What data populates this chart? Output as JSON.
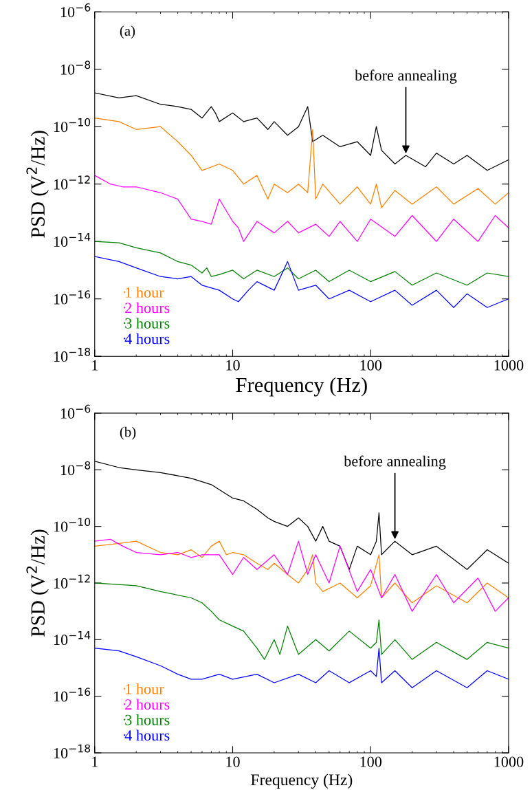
{
  "chart_data": [
    {
      "type": "line",
      "xlabel": "Frequency (Hz)",
      "ylabel": "PSD (V$^{2}$/Hz)",
      "log": "xy",
      "legend": "bottom left",
      "grid": false,
      "xlim": [
        1,
        1000
      ],
      "xticks": [
        1,
        10,
        100,
        1000
      ],
      "ylim": [
        1e-18,
        1e-06
      ],
      "yticks": [
        {
          "value": 1e-18,
          "label": "10$^{−18}$"
        },
        {
          "value": 1e-16,
          "label": "10$^{−16}$"
        },
        {
          "value": 1e-14,
          "label": "10$^{−14}$"
        },
        {
          "value": 1e-12,
          "label": "10$^{−12}$"
        },
        {
          "value": 1e-10,
          "label": "10$^{−10}$"
        },
        {
          "value": 1e-08,
          "label": "10$^{−8}$"
        },
        {
          "value": 1e-06,
          "label": "10$^{−6}$"
        }
      ],
      "annotations": [
        "(a)",
        {
          "text": "before annealing",
          "x": 180,
          "y": 1e-11
        }
      ],
      "series": [
        {
          "color": "#000000",
          "x": [
            1,
            1.5,
            2,
            3,
            4,
            5,
            6,
            7,
            7.5,
            8,
            10,
            12,
            15,
            18,
            20,
            25,
            30,
            35,
            38,
            45,
            60,
            80,
            100,
            110,
            120,
            150,
            180,
            250,
            300,
            400,
            500,
            700,
            1000
          ],
          "values": [
            1.5e-09,
            1e-09,
            1.2e-09,
            6e-10,
            5e-10,
            4e-10,
            2e-10,
            5e-10,
            3e-10,
            1.5e-10,
            3e-10,
            1.5e-10,
            2e-10,
            8e-11,
            1.5e-10,
            5e-11,
            1e-10,
            5e-10,
            3e-11,
            5e-11,
            2e-11,
            3e-11,
            1e-11,
            1e-10,
            1.5e-11,
            5e-12,
            1e-11,
            4e-12,
            1.2e-11,
            5e-12,
            1e-11,
            3e-12,
            7e-12
          ]
        },
        {
          "name": "1 hour",
          "color": "#ff8000",
          "x": [
            1,
            1.5,
            2,
            3,
            4,
            5,
            6,
            8,
            10,
            12,
            15,
            18,
            20,
            25,
            30,
            35,
            38,
            40,
            45,
            60,
            80,
            100,
            110,
            120,
            150,
            200,
            300,
            400,
            600,
            800,
            1000
          ],
          "values": [
            2e-10,
            1.5e-10,
            8e-11,
            1e-10,
            3e-11,
            1e-11,
            3e-12,
            5e-12,
            3e-12,
            1e-12,
            2e-12,
            3e-13,
            1e-12,
            5e-13,
            1e-12,
            5e-13,
            8e-11,
            3e-13,
            1e-12,
            2e-13,
            8e-13,
            2e-13,
            1e-12,
            1.5e-13,
            6e-13,
            2e-13,
            8e-13,
            2e-13,
            7e-13,
            2e-13,
            5e-13
          ]
        },
        {
          "name": "2 hours",
          "color": "#ff00ff",
          "x": [
            1,
            1.3,
            1.6,
            2,
            3,
            4,
            5,
            6,
            7,
            8,
            10,
            11,
            12,
            15,
            20,
            25,
            30,
            40,
            50,
            60,
            80,
            100,
            150,
            200,
            300,
            400,
            600,
            800,
            1000
          ],
          "values": [
            2e-12,
            1e-12,
            8e-13,
            8e-13,
            5e-13,
            3e-13,
            6e-14,
            5e-14,
            4e-14,
            3e-13,
            5e-14,
            3e-14,
            1e-14,
            5e-14,
            2e-14,
            5e-14,
            2e-14,
            4e-14,
            1.5e-14,
            5e-14,
            1e-14,
            6e-14,
            1.5e-14,
            8e-14,
            1e-14,
            6e-14,
            1e-14,
            8e-14,
            3e-14
          ]
        },
        {
          "name": "3 hours",
          "color": "#008000",
          "x": [
            1,
            1.5,
            2,
            3,
            4,
            5,
            6,
            6.5,
            7,
            8,
            10,
            12,
            15,
            20,
            25,
            30,
            40,
            50,
            70,
            100,
            150,
            200,
            300,
            500,
            700,
            1000
          ],
          "values": [
            1e-14,
            9e-15,
            6e-15,
            4e-15,
            2e-15,
            1.5e-15,
            8e-16,
            1.2e-15,
            6e-16,
            7e-16,
            1e-15,
            5e-16,
            1e-15,
            6e-16,
            1.2e-15,
            5e-16,
            1e-15,
            4e-16,
            1e-15,
            4e-16,
            9e-16,
            3e-16,
            8e-16,
            3e-16,
            8e-16,
            6e-16
          ]
        },
        {
          "name": "4 hours",
          "color": "#0000ff",
          "x": [
            1,
            1.5,
            2,
            3,
            4,
            5,
            6,
            8,
            10,
            11,
            13,
            15,
            20,
            25,
            30,
            40,
            50,
            70,
            100,
            150,
            200,
            300,
            400,
            500,
            700,
            1000
          ],
          "values": [
            3e-15,
            2e-15,
            1.2e-15,
            6e-16,
            5e-16,
            6e-16,
            3e-16,
            2e-16,
            1e-16,
            8e-17,
            2e-16,
            4e-16,
            2e-16,
            2e-15,
            2e-16,
            3e-16,
            1e-16,
            2e-16,
            8e-17,
            2e-16,
            6e-17,
            2e-16,
            5e-17,
            1.5e-16,
            5e-17,
            1e-16
          ]
        }
      ]
    },
    {
      "type": "line",
      "xlabel": "Frequency (Hz)",
      "ylabel": "PSD (V$^{2}$/Hz)",
      "log": "xy",
      "legend": "bottom left",
      "grid": false,
      "xlim": [
        1,
        1000
      ],
      "xticks": [
        1,
        10,
        100,
        1000
      ],
      "ylim": [
        1e-18,
        1e-06
      ],
      "yticks": [
        {
          "value": 1e-18,
          "label": "10$^{−18}$"
        },
        {
          "value": 1e-16,
          "label": "10$^{−16}$"
        },
        {
          "value": 1e-14,
          "label": "10$^{−14}$"
        },
        {
          "value": 1e-12,
          "label": "10$^{−12}$"
        },
        {
          "value": 1e-10,
          "label": "10$^{−10}$"
        },
        {
          "value": 1e-08,
          "label": "10$^{−8}$"
        },
        {
          "value": 1e-06,
          "label": "10$^{−6}$"
        }
      ],
      "annotations": [
        "(b)",
        {
          "text": "before annealing",
          "x": 150,
          "y": 3e-11
        }
      ],
      "series": [
        {
          "color": "#000000",
          "x": [
            1,
            1.5,
            2,
            3,
            5,
            7,
            10,
            12,
            15,
            18,
            20,
            25,
            30,
            35,
            40,
            45,
            50,
            60,
            70,
            80,
            100,
            110,
            115,
            120,
            150,
            200,
            300,
            500,
            700,
            1000
          ],
          "values": [
            2e-08,
            1.2e-08,
            1e-08,
            8e-09,
            5e-09,
            3e-09,
            1e-09,
            8e-10,
            4e-10,
            2e-10,
            1.5e-10,
            1e-10,
            2e-10,
            1e-10,
            3e-11,
            1e-10,
            3e-11,
            2e-11,
            3e-12,
            2e-11,
            1e-11,
            3e-11,
            3e-10,
            1e-11,
            3e-11,
            1e-11,
            2e-11,
            3e-12,
            1.5e-11,
            5e-12
          ]
        },
        {
          "name": "1 hour",
          "color": "#ff8000",
          "x": [
            1,
            1.5,
            2,
            3,
            4,
            5,
            6,
            7,
            8,
            9,
            10,
            12,
            15,
            18,
            20,
            25,
            30,
            35,
            38,
            40,
            45,
            60,
            80,
            100,
            115,
            120,
            150,
            200,
            300,
            500,
            700,
            1000
          ],
          "values": [
            2e-11,
            2.5e-11,
            3e-11,
            1.2e-11,
            1e-11,
            1.5e-11,
            8e-12,
            2e-11,
            3e-11,
            1e-11,
            1.2e-11,
            1e-11,
            5e-12,
            3e-12,
            5e-12,
            2e-12,
            1e-12,
            3e-12,
            1e-11,
            1e-12,
            5e-13,
            1e-12,
            3e-13,
            8e-13,
            1e-11,
            3e-13,
            1e-12,
            2e-13,
            8e-13,
            2e-13,
            1e-12,
            3e-13
          ]
        },
        {
          "name": "2 hours",
          "color": "#ff00ff",
          "x": [
            1,
            1.3,
            1.6,
            2,
            3,
            4,
            5,
            6,
            8,
            10,
            12,
            15,
            20,
            25,
            30,
            35,
            40,
            50,
            60,
            80,
            100,
            120,
            150,
            200,
            300,
            400,
            600,
            800,
            1000
          ],
          "values": [
            3e-11,
            3.5e-11,
            2e-11,
            1.2e-11,
            1e-11,
            1.2e-11,
            8e-12,
            1e-11,
            1e-11,
            2e-12,
            8e-12,
            3e-12,
            1e-11,
            2e-12,
            3e-11,
            2e-12,
            1e-11,
            1e-12,
            2e-11,
            5e-13,
            3e-12,
            3e-13,
            2e-12,
            1e-13,
            2e-12,
            2e-13,
            1.5e-12,
            1e-13,
            3e-13
          ]
        },
        {
          "name": "3 hours",
          "color": "#008000",
          "x": [
            1,
            2,
            3,
            5,
            6,
            7,
            8,
            10,
            12,
            15,
            17,
            20,
            22,
            25,
            30,
            40,
            50,
            70,
            100,
            110,
            115,
            120,
            150,
            200,
            300,
            500,
            700,
            1000
          ],
          "values": [
            1e-12,
            8e-13,
            5e-13,
            3e-13,
            2e-13,
            1e-13,
            5e-14,
            3e-14,
            2e-14,
            5e-15,
            2e-15,
            1e-14,
            3e-15,
            3e-14,
            3e-15,
            1e-14,
            4e-15,
            2e-14,
            5e-15,
            8e-15,
            5e-14,
            3e-15,
            1e-14,
            2e-15,
            8e-15,
            2e-15,
            8e-15,
            5e-15
          ]
        },
        {
          "name": "4 hours",
          "color": "#0000ff",
          "x": [
            1,
            1.5,
            2,
            3,
            4,
            5,
            6,
            8,
            10,
            15,
            20,
            30,
            40,
            50,
            70,
            100,
            110,
            115,
            120,
            150,
            200,
            300,
            500,
            700,
            1000
          ],
          "values": [
            5e-15,
            4e-15,
            2.5e-15,
            1.2e-15,
            6e-16,
            4e-16,
            4e-16,
            6e-16,
            4e-16,
            6e-16,
            3e-16,
            6e-16,
            3e-16,
            8e-16,
            3e-16,
            8e-16,
            5e-16,
            5e-15,
            3e-16,
            8e-16,
            2e-16,
            8e-16,
            2e-16,
            8e-16,
            4e-16
          ]
        }
      ]
    }
  ]
}
